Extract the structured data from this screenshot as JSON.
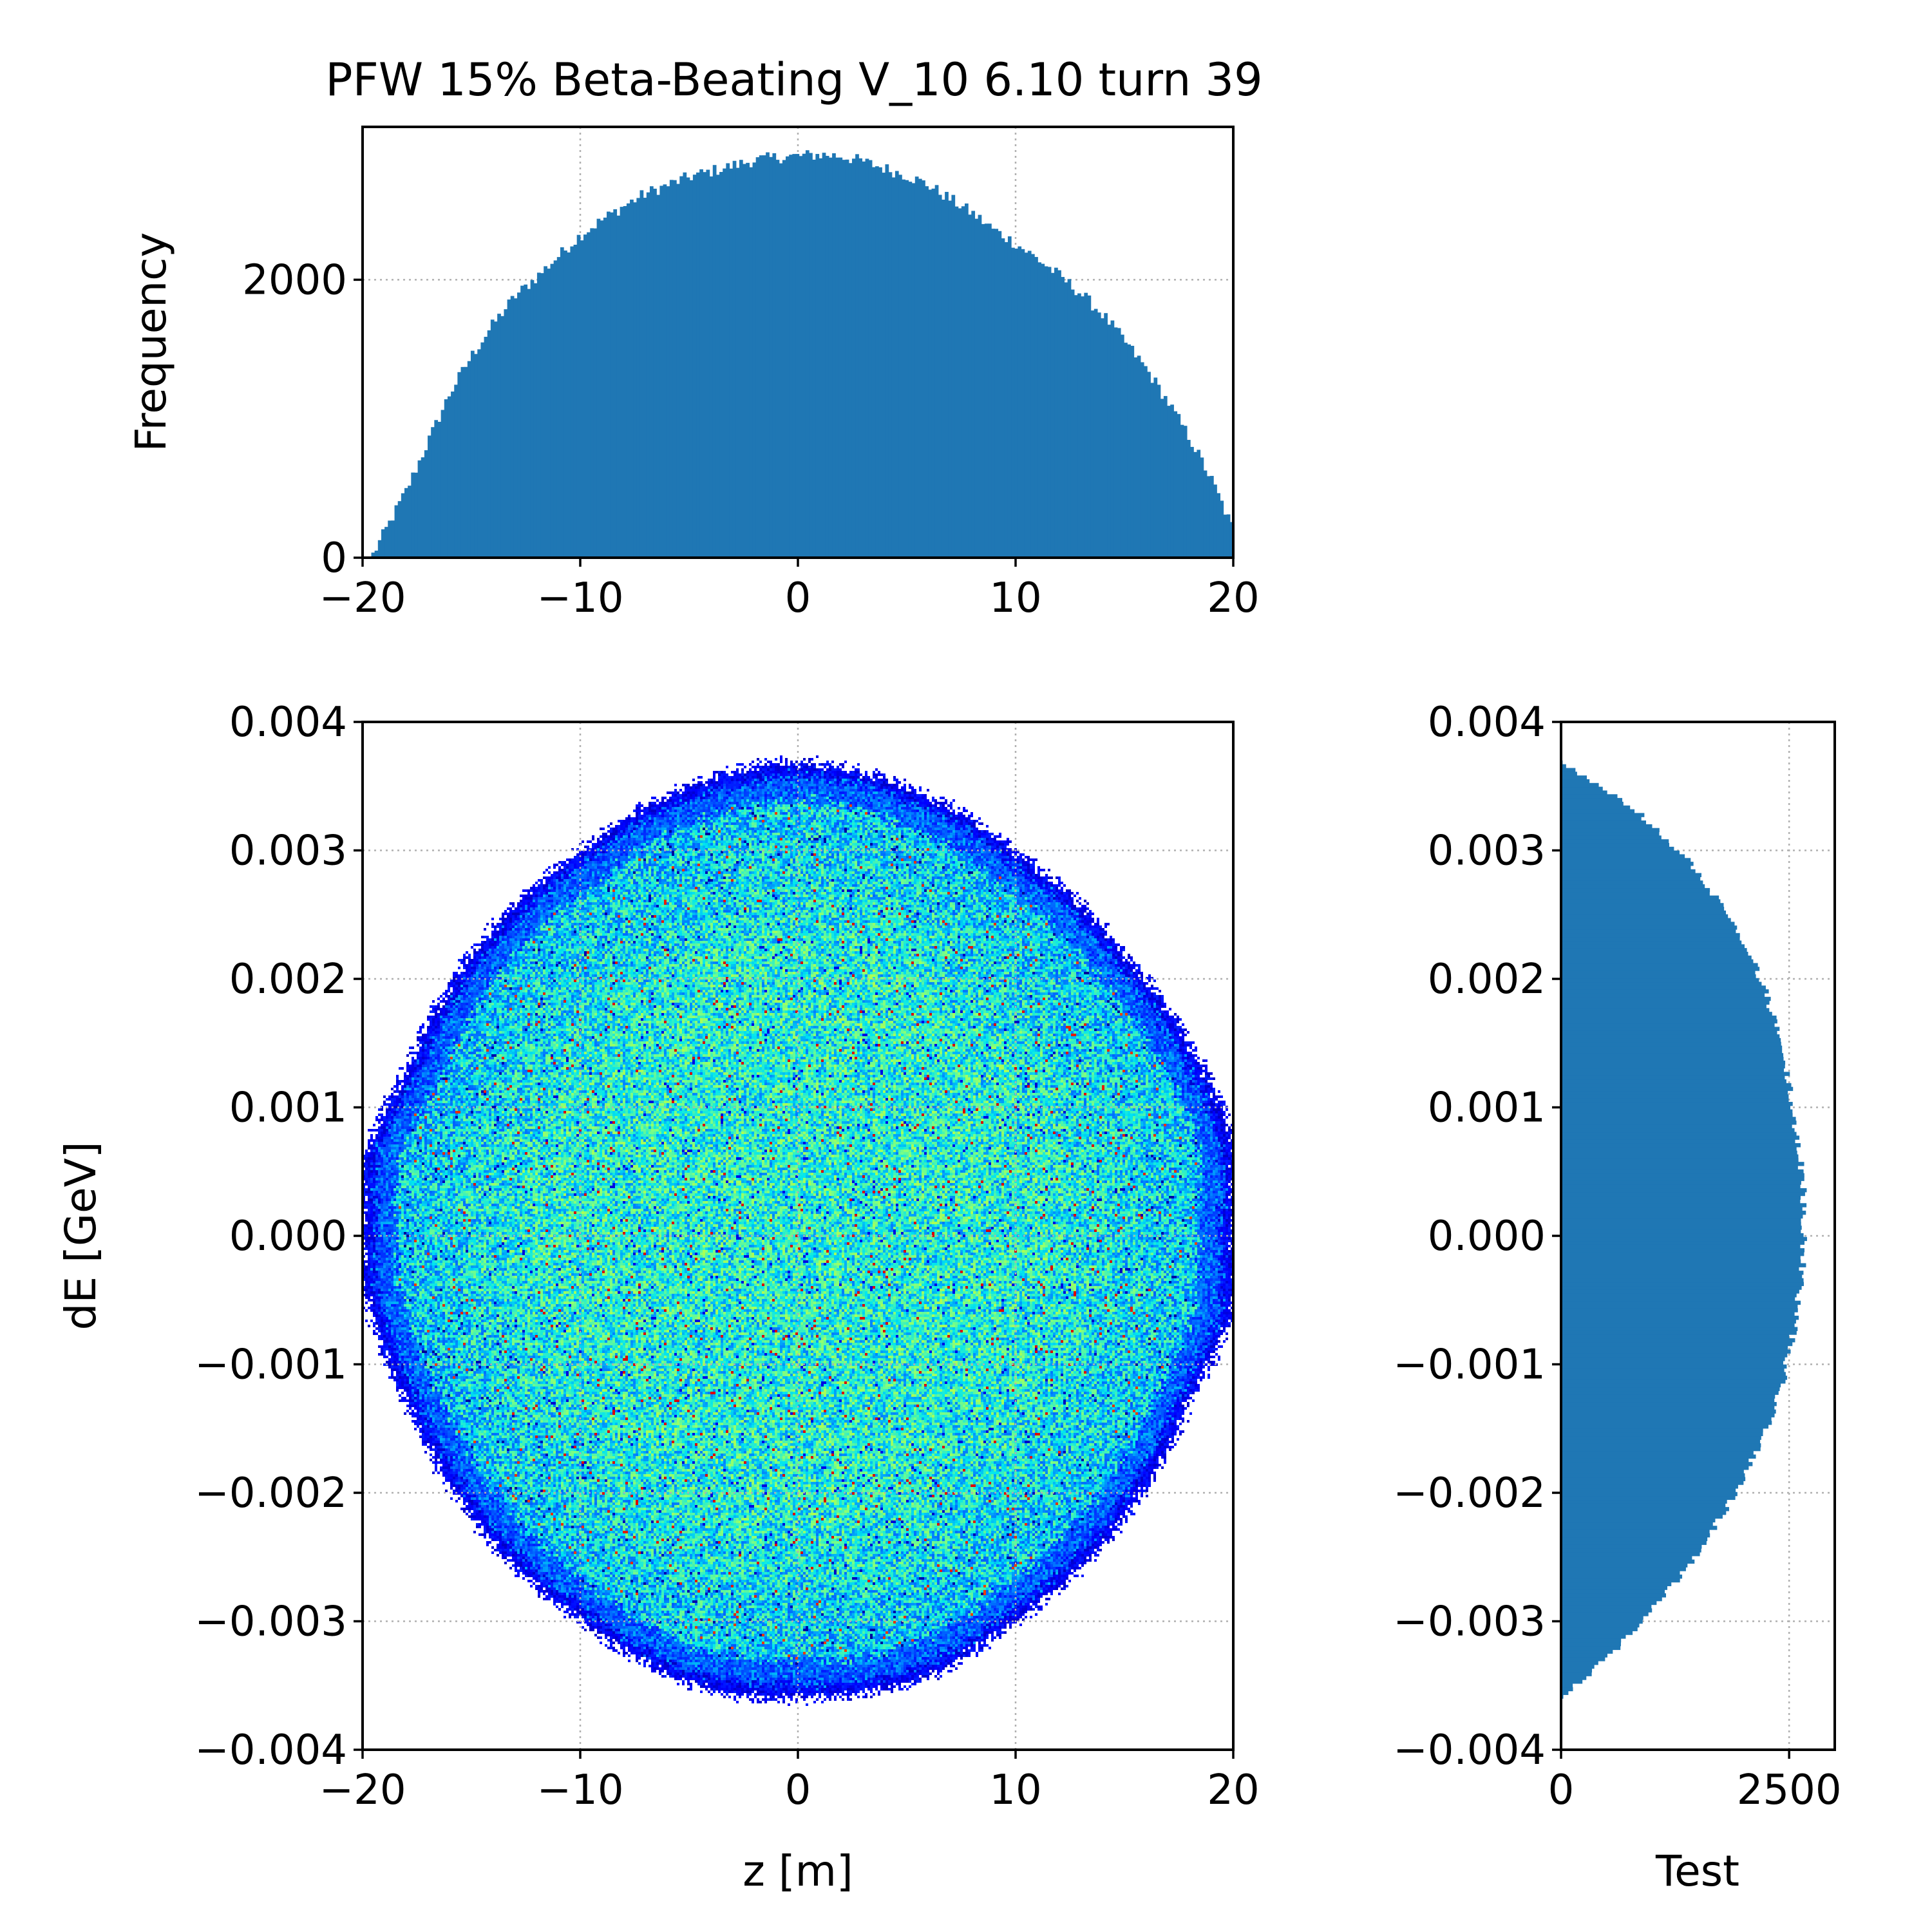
{
  "title": "PFW 15% Beta-Beating V_10 6.10 turn 39",
  "colors": {
    "histogram_fill": "#1f77b4",
    "frame": "#000000",
    "grid": "#b0b0b0",
    "colormap": [
      "#00007f",
      "#0000ff",
      "#007fff",
      "#00ffff",
      "#7fff7f",
      "#ffff00",
      "#ff7f00",
      "#ff0000"
    ]
  },
  "chart_data": [
    {
      "id": "top-histogram",
      "type": "bar",
      "title": "PFW 15% Beta-Beating V_10 6.10 turn 39",
      "xlabel": "",
      "ylabel": "Frequency",
      "xlim": [
        -20,
        20
      ],
      "ylim": [
        0,
        3100
      ],
      "xticks": [
        -20,
        -10,
        0,
        10,
        20
      ],
      "xtick_labels": [
        "−20",
        "−10",
        "0",
        "10",
        "20"
      ],
      "yticks": [
        0,
        2000
      ],
      "ytick_labels": [
        "0",
        "2000"
      ],
      "grid": true,
      "x": [
        -19.6,
        -19,
        -18,
        -17,
        -16,
        -15,
        -14,
        -13,
        -12,
        -11,
        -10,
        -9,
        -8,
        -7,
        -6,
        -5,
        -4,
        -3,
        -2,
        -1,
        0,
        1,
        2,
        3,
        4,
        5,
        6,
        7,
        8,
        9,
        10,
        11,
        12,
        13,
        14,
        15,
        16,
        17,
        18,
        19,
        20
      ],
      "values": [
        0,
        180,
        480,
        830,
        1180,
        1450,
        1680,
        1880,
        2020,
        2170,
        2320,
        2430,
        2530,
        2620,
        2680,
        2740,
        2780,
        2820,
        2860,
        2880,
        2890,
        2900,
        2890,
        2850,
        2800,
        2750,
        2680,
        2580,
        2480,
        2360,
        2260,
        2150,
        2030,
        1900,
        1750,
        1560,
        1360,
        1120,
        860,
        560,
        200
      ]
    },
    {
      "id": "phase-space",
      "type": "heatmap",
      "xlabel": "z [m]",
      "ylabel": "dE [GeV]",
      "xlim": [
        -20,
        20
      ],
      "ylim": [
        -0.004,
        0.004
      ],
      "xticks": [
        -20,
        -10,
        0,
        10,
        20
      ],
      "xtick_labels": [
        "−20",
        "−10",
        "0",
        "10",
        "20"
      ],
      "yticks": [
        -0.004,
        -0.003,
        -0.002,
        -0.001,
        0,
        0.001,
        0.002,
        0.003,
        0.004
      ],
      "ytick_labels": [
        "−0.004",
        "−0.003",
        "−0.002",
        "−0.001",
        "0.000",
        "0.001",
        "0.002",
        "0.003",
        "0.004"
      ],
      "grid": true,
      "distribution": {
        "boundary_z": [
          0,
          5,
          10,
          15,
          18,
          20,
          20,
          20,
          18,
          15,
          10,
          5,
          0,
          -5,
          -10,
          -15,
          -18,
          -20,
          -20,
          -20,
          -18,
          -15,
          -10,
          -5
        ],
        "boundary_dE": [
          0.0037,
          0.0035,
          0.003,
          0.0022,
          0.0015,
          0.0008,
          0,
          -0.0006,
          -0.0013,
          -0.0022,
          -0.003,
          -0.0035,
          -0.0036,
          -0.0035,
          -0.003,
          -0.0022,
          -0.0013,
          -0.0004,
          0,
          0.0006,
          0.0013,
          0.0022,
          0.003,
          0.0035
        ]
      }
    },
    {
      "id": "right-histogram",
      "type": "bar",
      "orientation": "horizontal",
      "xlabel": "Test",
      "ylabel": "",
      "xlim": [
        0,
        3000
      ],
      "ylim": [
        -0.004,
        0.004
      ],
      "xticks": [
        0,
        2500
      ],
      "xtick_labels": [
        "0",
        "2500"
      ],
      "yticks": [
        -0.004,
        -0.003,
        -0.002,
        -0.001,
        0,
        0.001,
        0.002,
        0.003,
        0.004
      ],
      "ytick_labels": [
        "−0.004",
        "−0.003",
        "−0.002",
        "−0.001",
        "0.000",
        "0.001",
        "0.002",
        "0.003",
        "0.004"
      ],
      "grid": true,
      "y": [
        -0.0036,
        -0.0035,
        -0.0033,
        -0.0031,
        -0.0029,
        -0.0027,
        -0.0025,
        -0.0023,
        -0.0021,
        -0.0019,
        -0.0017,
        -0.0015,
        -0.0013,
        -0.0011,
        -0.0009,
        -0.0007,
        -0.0005,
        -0.0003,
        -0.0001,
        0.0001,
        0.0003,
        0.0005,
        0.0007,
        0.0009,
        0.0011,
        0.0013,
        0.0015,
        0.0017,
        0.0019,
        0.0021,
        0.0023,
        0.0025,
        0.0027,
        0.0029,
        0.0031,
        0.0033,
        0.0035,
        0.0037
      ],
      "values": [
        0,
        150,
        480,
        760,
        1000,
        1250,
        1480,
        1650,
        1830,
        1990,
        2120,
        2250,
        2350,
        2440,
        2500,
        2560,
        2600,
        2640,
        2660,
        2670,
        2660,
        2640,
        2600,
        2560,
        2520,
        2470,
        2420,
        2330,
        2240,
        2130,
        1980,
        1820,
        1630,
        1420,
        1140,
        840,
        420,
        0
      ]
    }
  ]
}
